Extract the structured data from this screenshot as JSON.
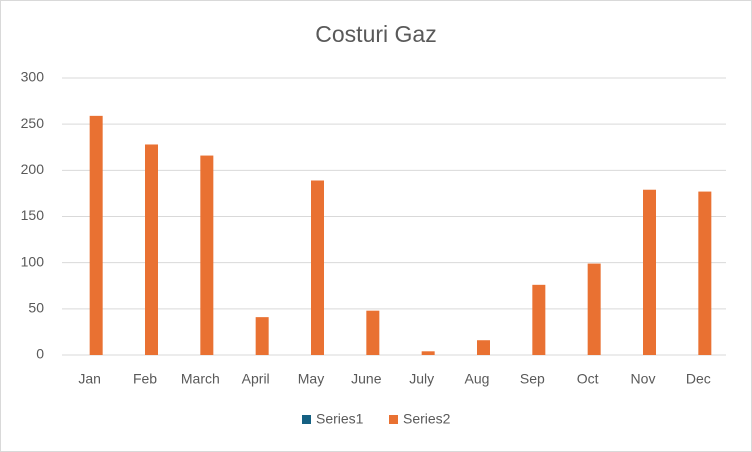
{
  "chart_data": {
    "type": "bar",
    "title": "Costuri Gaz",
    "categories": [
      "Jan",
      "Feb",
      "March",
      "April",
      "May",
      "June",
      "July",
      "Aug",
      "Sep",
      "Oct",
      "Nov",
      "Dec"
    ],
    "series": [
      {
        "name": "Series1",
        "color": "#156082",
        "values": [
          null,
          null,
          null,
          null,
          null,
          null,
          null,
          null,
          null,
          null,
          null,
          null
        ]
      },
      {
        "name": "Series2",
        "color": "#e97132",
        "values": [
          259,
          228,
          216,
          41,
          189,
          48,
          4,
          16,
          76,
          99,
          179,
          177
        ]
      }
    ],
    "ylim": [
      0,
      300
    ],
    "yticks": [
      0,
      50,
      100,
      150,
      200,
      250,
      300
    ],
    "grid": true,
    "legend": "bottom"
  }
}
